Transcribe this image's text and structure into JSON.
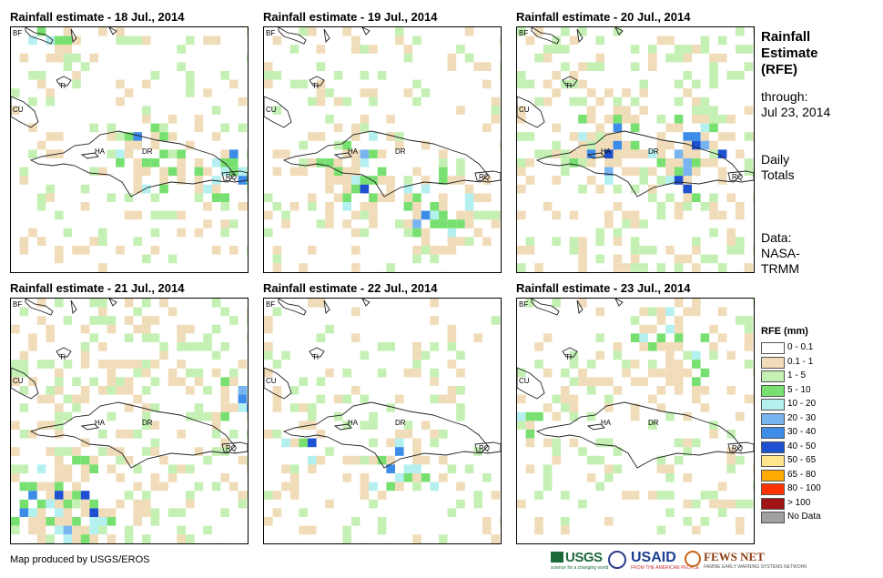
{
  "panels": [
    {
      "title": "Rainfall estimate - 18 Jul., 2014"
    },
    {
      "title": "Rainfall estimate - 19 Jul., 2014"
    },
    {
      "title": "Rainfall estimate - 20 Jul., 2014"
    },
    {
      "title": "Rainfall estimate - 21 Jul., 2014"
    },
    {
      "title": "Rainfall estimate - 22 Jul., 2014"
    },
    {
      "title": "Rainfall estimate - 23 Jul., 2014"
    }
  ],
  "map_labels": {
    "bf": "BF",
    "cu": "CU",
    "ti": "TI",
    "ha": "HA",
    "dr": "DR",
    "rq": "RQ"
  },
  "side": {
    "title_line1": "Rainfall",
    "title_line2": "Estimate",
    "title_line3": "(RFE)",
    "through_label": "through:",
    "through_date": "Jul 23, 2014",
    "daily_line1": "Daily",
    "daily_line2": "Totals",
    "data_line1": "Data:",
    "data_line2": "NASA-",
    "data_line3": "TRMM"
  },
  "legend": {
    "title": "RFE (mm)",
    "items": [
      {
        "label": "0 - 0.1",
        "color": "#ffffff"
      },
      {
        "label": "0.1 - 1",
        "color": "#f0dcb8"
      },
      {
        "label": "1 - 5",
        "color": "#c4f0b4"
      },
      {
        "label": "5 - 10",
        "color": "#78e070"
      },
      {
        "label": "10 - 20",
        "color": "#b4f0f0"
      },
      {
        "label": "20 - 30",
        "color": "#78b4f0"
      },
      {
        "label": "30 - 40",
        "color": "#3c8ce8"
      },
      {
        "label": "40 - 50",
        "color": "#1e50d2"
      },
      {
        "label": "50 - 65",
        "color": "#ffe68c"
      },
      {
        "label": "65 - 80",
        "color": "#ffaa00"
      },
      {
        "label": "80 - 100",
        "color": "#ff3200"
      },
      {
        "label": "> 100",
        "color": "#a01414"
      },
      {
        "label": "No Data",
        "color": "#a0a0a0"
      }
    ]
  },
  "footer": {
    "credit": "Map produced by USGS/EROS",
    "logo_usgs": "USGS",
    "logo_usgs_tagline": "science for a changing world",
    "logo_usaid": "USAID",
    "logo_usaid_tagline": "FROM THE AMERICAN PEOPLE",
    "logo_fews": "FEWS NET",
    "logo_fews_tagline": "FAMINE EARLY WARNING SYSTEMS NETWORK"
  }
}
